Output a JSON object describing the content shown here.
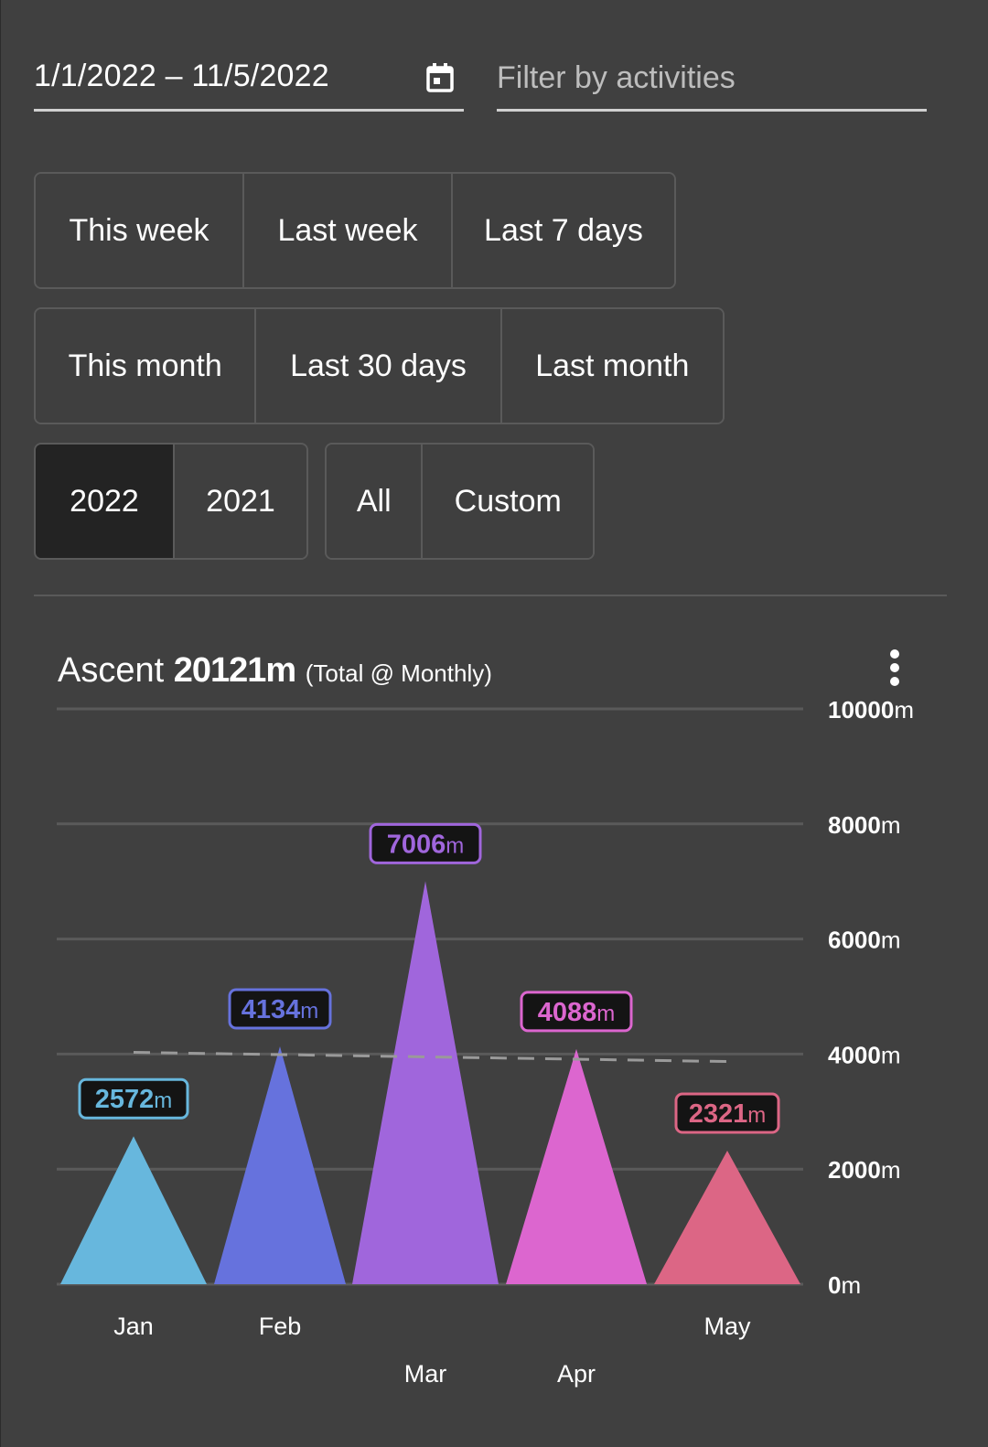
{
  "date_range": {
    "value": "1/1/2022 – 11/5/2022",
    "icon": "calendar-icon"
  },
  "filter": {
    "placeholder": "Filter by activities"
  },
  "quick_ranges": {
    "row1": [
      "This week",
      "Last week",
      "Last 7 days"
    ],
    "row2": [
      "This month",
      "Last 30 days",
      "Last month"
    ],
    "years": [
      "2022",
      "2021"
    ],
    "other": [
      "All",
      "Custom"
    ],
    "selected": "2022"
  },
  "chart_header": {
    "metric": "Ascent",
    "total": "20121m",
    "subtitle": "(Total @ Monthly)",
    "menu_icon": "more-vertical-icon"
  },
  "chart_data": {
    "type": "bar",
    "bar_shape": "triangle",
    "categories": [
      "Jan",
      "Feb",
      "Mar",
      "Apr",
      "May"
    ],
    "series": [
      {
        "values": [
          2572,
          4134,
          7006,
          4088,
          2321
        ]
      }
    ],
    "value_labels": [
      "2572",
      "4134",
      "7006",
      "4088",
      "2321"
    ],
    "value_unit": "m",
    "colors": [
      "#67b7dd",
      "#6672dd",
      "#a066dc",
      "#dc66cf",
      "#dc6685"
    ],
    "label_text_colors": [
      "#67b7dd",
      "#6672dd",
      "#a066dc",
      "#dc66cf",
      "#dc6685"
    ],
    "ylim": [
      0,
      10000
    ],
    "yticks": [
      0,
      2000,
      4000,
      6000,
      8000,
      10000
    ],
    "ytick_labels": [
      "0",
      "2000",
      "4000",
      "6000",
      "8000",
      "10000"
    ],
    "ytick_unit": "m",
    "y_axis_side": "right",
    "grid": true,
    "trend_line": {
      "start": 4030,
      "end": 3870,
      "style": "dashed"
    }
  }
}
